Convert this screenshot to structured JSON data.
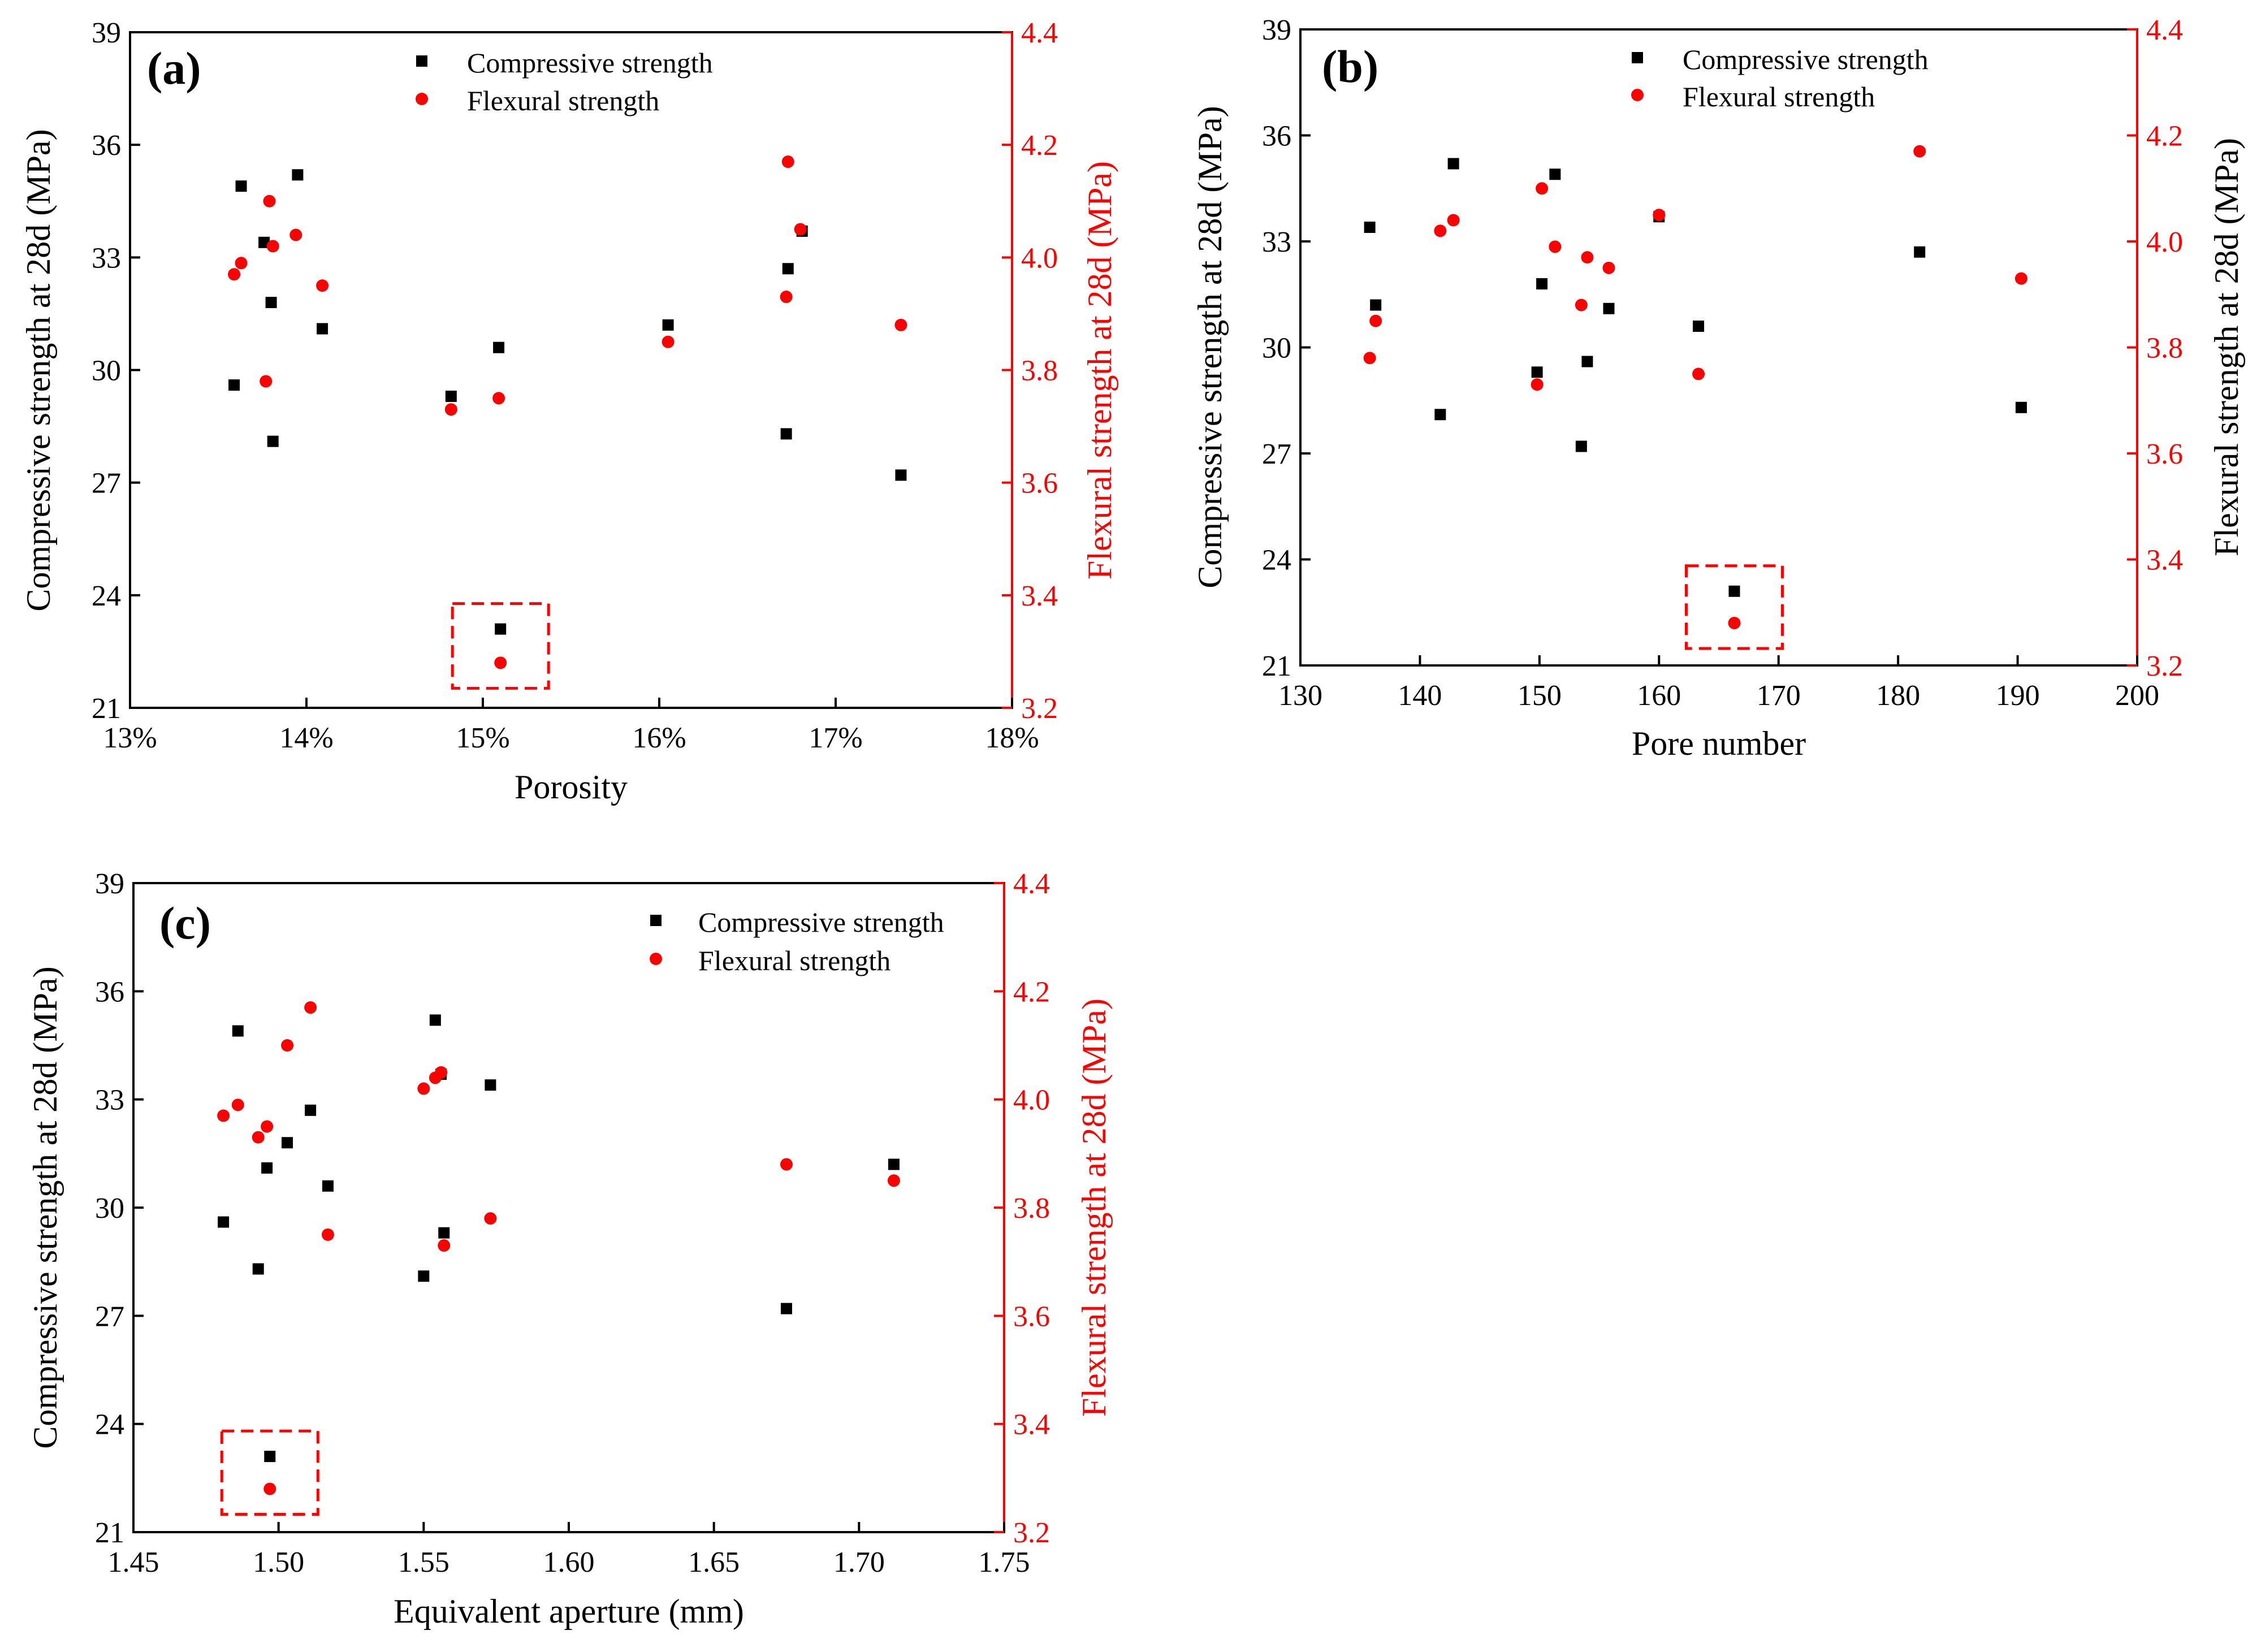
{
  "chart_data": [
    {
      "type": "scatter",
      "panel_label": "(a)",
      "xlabel": "Porosity",
      "ylabel": "Compressive strength at 28d (MPa)",
      "y2label": "Flexural strength at 28d (MPa)",
      "xlim": [
        13,
        18
      ],
      "ylim": [
        21,
        39
      ],
      "y2lim": [
        3.2,
        4.4
      ],
      "xticks": [
        13,
        14,
        15,
        16,
        17,
        18
      ],
      "xtick_labels": [
        "13%",
        "14%",
        "15%",
        "16%",
        "17%",
        "18%"
      ],
      "yticks": [
        21,
        24,
        27,
        30,
        33,
        36,
        39
      ],
      "ytick_labels": [
        "21",
        "24",
        "27",
        "30",
        "33",
        "36",
        "39"
      ],
      "y2ticks": [
        3.2,
        3.4,
        3.6,
        3.8,
        4.0,
        4.2,
        4.4
      ],
      "y2tick_labels": [
        "3.2",
        "3.4",
        "3.6",
        "3.8",
        "4.0",
        "4.2",
        "4.4"
      ],
      "legend": [
        "Compressive strength",
        "Flexural strength"
      ],
      "legend_position": "top-center",
      "highlight": {
        "x": 15.1,
        "note": "dashed red box around outlier"
      },
      "series": [
        {
          "name": "Compressive strength",
          "axis": "left",
          "color": "#000000",
          "marker": "square",
          "x": [
            13.59,
            13.63,
            13.76,
            13.8,
            13.81,
            13.95,
            14.09,
            14.82,
            15.09,
            15.1,
            16.05,
            16.72,
            16.73,
            16.81,
            17.37
          ],
          "y": [
            29.6,
            34.9,
            33.4,
            31.8,
            28.1,
            35.2,
            31.1,
            29.3,
            30.6,
            23.1,
            31.2,
            28.3,
            32.7,
            33.7,
            27.2
          ]
        },
        {
          "name": "Flexural strength",
          "axis": "right",
          "color": "#ff0000",
          "marker": "circle",
          "x": [
            13.59,
            13.63,
            13.77,
            13.79,
            13.81,
            13.94,
            14.09,
            14.82,
            15.09,
            15.1,
            16.05,
            16.72,
            16.73,
            16.8,
            17.37
          ],
          "y": [
            3.97,
            3.99,
            3.78,
            4.1,
            4.02,
            4.04,
            3.95,
            3.73,
            3.75,
            3.28,
            3.85,
            3.93,
            4.17,
            4.05,
            3.88
          ]
        }
      ]
    },
    {
      "type": "scatter",
      "panel_label": "(b)",
      "xlabel": "Pore number",
      "ylabel": "Compressive strength at 28d (MPa)",
      "y2label": "Flexural strength at 28d (MPa)",
      "xlim": [
        130,
        200
      ],
      "ylim": [
        21,
        39
      ],
      "y2lim": [
        3.2,
        4.4
      ],
      "xticks": [
        130,
        140,
        150,
        160,
        170,
        180,
        190,
        200
      ],
      "xtick_labels": [
        "130",
        "140",
        "150",
        "160",
        "170",
        "180",
        "190",
        "200"
      ],
      "yticks": [
        21,
        24,
        27,
        30,
        33,
        36,
        39
      ],
      "ytick_labels": [
        "21",
        "24",
        "27",
        "30",
        "33",
        "36",
        "39"
      ],
      "y2ticks": [
        3.2,
        3.4,
        3.6,
        3.8,
        4.0,
        4.2,
        4.4
      ],
      "y2tick_labels": [
        "3.2",
        "3.4",
        "3.6",
        "3.8",
        "4.0",
        "4.2",
        "4.4"
      ],
      "legend": [
        "Compressive strength",
        "Flexural strength"
      ],
      "legend_position": "top-center",
      "highlight": {
        "x": 166.3,
        "note": "dashed red box around outlier"
      },
      "series": [
        {
          "name": "Compressive strength",
          "axis": "left",
          "color": "#000000",
          "marker": "square",
          "x": [
            135.8,
            136.3,
            141.7,
            142.8,
            149.8,
            150.2,
            151.3,
            153.5,
            154.0,
            155.8,
            160.0,
            163.3,
            166.3,
            181.8,
            190.3
          ],
          "y": [
            33.4,
            31.2,
            28.1,
            35.2,
            29.3,
            31.8,
            34.9,
            27.2,
            29.6,
            31.1,
            33.7,
            30.6,
            23.1,
            32.7,
            28.3
          ]
        },
        {
          "name": "Flexural strength",
          "axis": "right",
          "color": "#ff0000",
          "marker": "circle",
          "x": [
            135.8,
            136.3,
            141.7,
            142.8,
            149.8,
            150.2,
            151.3,
            153.5,
            154.0,
            155.8,
            160.0,
            163.3,
            166.3,
            181.8,
            190.3
          ],
          "y": [
            3.78,
            3.85,
            4.02,
            4.04,
            3.73,
            4.1,
            3.99,
            3.88,
            3.97,
            3.95,
            4.05,
            3.75,
            3.28,
            4.17,
            3.93
          ]
        }
      ]
    },
    {
      "type": "scatter",
      "panel_label": "(c)",
      "xlabel": "Equivalent aperture (mm)",
      "ylabel": "Compressive strength at 28d (MPa)",
      "y2label": "Flexural strength at 28d (MPa)",
      "xlim": [
        1.45,
        1.75
      ],
      "ylim": [
        21,
        39
      ],
      "y2lim": [
        3.2,
        4.4
      ],
      "xticks": [
        1.45,
        1.5,
        1.55,
        1.6,
        1.65,
        1.7,
        1.75
      ],
      "xtick_labels": [
        "1.45",
        "1.50",
        "1.55",
        "1.60",
        "1.65",
        "1.70",
        "1.75"
      ],
      "yticks": [
        21,
        24,
        27,
        30,
        33,
        36,
        39
      ],
      "ytick_labels": [
        "21",
        "24",
        "27",
        "30",
        "33",
        "36",
        "39"
      ],
      "y2ticks": [
        3.2,
        3.4,
        3.6,
        3.8,
        4.0,
        4.2,
        4.4
      ],
      "y2tick_labels": [
        "3.2",
        "3.4",
        "3.6",
        "3.8",
        "4.0",
        "4.2",
        "4.4"
      ],
      "legend": [
        "Compressive strength",
        "Flexural strength"
      ],
      "legend_position": "top-right",
      "highlight": {
        "x": 1.497,
        "note": "dashed red box around outlier"
      },
      "series": [
        {
          "name": "Compressive strength",
          "axis": "left",
          "color": "#000000",
          "marker": "square",
          "x": [
            1.481,
            1.486,
            1.493,
            1.496,
            1.497,
            1.503,
            1.511,
            1.517,
            1.55,
            1.554,
            1.556,
            1.557,
            1.573,
            1.675,
            1.712
          ],
          "y": [
            29.6,
            34.9,
            28.3,
            31.1,
            23.1,
            31.8,
            32.7,
            30.6,
            28.1,
            35.2,
            33.7,
            29.3,
            33.4,
            27.2,
            31.2
          ]
        },
        {
          "name": "Flexural strength",
          "axis": "right",
          "color": "#ff0000",
          "marker": "circle",
          "x": [
            1.481,
            1.486,
            1.493,
            1.496,
            1.497,
            1.503,
            1.511,
            1.517,
            1.55,
            1.554,
            1.556,
            1.557,
            1.573,
            1.675,
            1.712
          ],
          "y": [
            3.97,
            3.99,
            3.93,
            3.95,
            3.28,
            4.1,
            4.17,
            3.75,
            4.02,
            4.04,
            4.05,
            3.73,
            3.78,
            3.88,
            3.85
          ]
        }
      ]
    }
  ]
}
